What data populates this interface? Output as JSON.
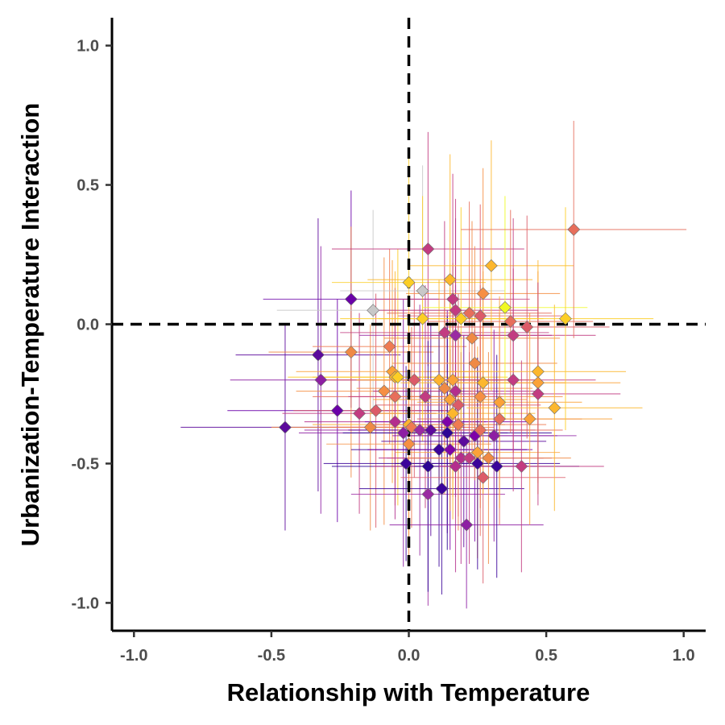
{
  "chart_data": {
    "type": "scatter",
    "title": "",
    "xlabel": "Relationship with Temperature",
    "ylabel": "Urbanization-Temperature Interaction",
    "xlim": [
      -1.08,
      1.08
    ],
    "ylim": [
      -1.1,
      1.1
    ],
    "x_ticks": [
      -1.0,
      -0.5,
      0.0,
      0.5,
      1.0
    ],
    "y_ticks": [
      -1.0,
      -0.5,
      0.0,
      0.5,
      1.0
    ],
    "x_tick_labels": [
      "-1.0",
      "-0.5",
      "0.0",
      "0.5",
      "1.0"
    ],
    "y_tick_labels": [
      "-1.0",
      "-0.5",
      "0.0",
      "0.5",
      "1.0"
    ],
    "reference_lines": {
      "x": 0.0,
      "y": 0.0,
      "style": "dashed"
    },
    "grid": false,
    "legend": "none",
    "marker": "diamond with horizontal and vertical error bars",
    "colormap": "plasma",
    "points": [
      {
        "x": -0.45,
        "y": -0.37,
        "xerr": 0.38,
        "yerr": 0.37,
        "color": "#5c0a9c"
      },
      {
        "x": -0.33,
        "y": -0.11,
        "xerr": 0.3,
        "yerr": 0.49,
        "color": "#5c0a9c"
      },
      {
        "x": -0.32,
        "y": -0.2,
        "xerr": 0.33,
        "yerr": 0.48,
        "color": "#8d1fa3"
      },
      {
        "x": -0.26,
        "y": -0.31,
        "xerr": 0.4,
        "yerr": 0.4,
        "color": "#6a00a8"
      },
      {
        "x": -0.21,
        "y": 0.09,
        "xerr": 0.32,
        "yerr": 0.39,
        "color": "#6a00a8"
      },
      {
        "x": -0.21,
        "y": -0.1,
        "xerr": 0.3,
        "yerr": 0.45,
        "color": "#ef8a45"
      },
      {
        "x": -0.18,
        "y": -0.32,
        "xerr": 0.28,
        "yerr": 0.36,
        "color": "#c23c81"
      },
      {
        "x": -0.13,
        "y": 0.05,
        "xerr": 0.35,
        "yerr": 0.36,
        "color": "#c8c8c8"
      },
      {
        "x": -0.14,
        "y": -0.37,
        "xerr": 0.36,
        "yerr": 0.37,
        "color": "#ef8a45"
      },
      {
        "x": -0.12,
        "y": -0.31,
        "xerr": 0.3,
        "yerr": 0.42,
        "color": "#dc5b68"
      },
      {
        "x": -0.09,
        "y": -0.24,
        "xerr": 0.32,
        "yerr": 0.48,
        "color": "#f68f44"
      },
      {
        "x": -0.07,
        "y": -0.08,
        "xerr": 0.28,
        "yerr": 0.35,
        "color": "#ef7b52"
      },
      {
        "x": -0.06,
        "y": -0.17,
        "xerr": 0.35,
        "yerr": 0.4,
        "color": "#fba238"
      },
      {
        "x": -0.05,
        "y": -0.19,
        "xerr": 0.3,
        "yerr": 0.38,
        "color": "#fcb72d"
      },
      {
        "x": -0.05,
        "y": -0.26,
        "xerr": 0.3,
        "yerr": 0.39,
        "color": "#e76e5b"
      },
      {
        "x": -0.05,
        "y": -0.35,
        "xerr": 0.33,
        "yerr": 0.35,
        "color": "#b42e8d"
      },
      {
        "x": -0.04,
        "y": -0.19,
        "xerr": 0.4,
        "yerr": 0.46,
        "color": "#fcce25"
      },
      {
        "x": -0.02,
        "y": -0.39,
        "xerr": 0.38,
        "yerr": 0.48,
        "color": "#8d1fa3"
      },
      {
        "x": -0.01,
        "y": -0.5,
        "xerr": 0.3,
        "yerr": 0.35,
        "color": "#3b049a"
      },
      {
        "x": 0.0,
        "y": 0.15,
        "xerr": 0.28,
        "yerr": 0.48,
        "color": "#fcce25"
      },
      {
        "x": 0.0,
        "y": -0.36,
        "xerr": 0.35,
        "yerr": 0.4,
        "color": "#fdb42f"
      },
      {
        "x": 0.0,
        "y": -0.43,
        "xerr": 0.3,
        "yerr": 0.4,
        "color": "#f68f44"
      },
      {
        "x": 0.01,
        "y": -0.37,
        "xerr": 0.3,
        "yerr": 0.36,
        "color": "#ef7b52"
      },
      {
        "x": 0.02,
        "y": -0.2,
        "xerr": 0.32,
        "yerr": 0.35,
        "color": "#dc5b68"
      },
      {
        "x": 0.04,
        "y": -0.38,
        "xerr": 0.42,
        "yerr": 0.45,
        "color": "#9a2aa2"
      },
      {
        "x": 0.05,
        "y": 0.12,
        "xerr": 0.3,
        "yerr": 0.45,
        "color": "#c8c8c8"
      },
      {
        "x": 0.05,
        "y": 0.02,
        "xerr": 0.3,
        "yerr": 0.44,
        "color": "#fcce25"
      },
      {
        "x": 0.06,
        "y": -0.26,
        "xerr": 0.28,
        "yerr": 0.4,
        "color": "#c23c81"
      },
      {
        "x": 0.07,
        "y": 0.27,
        "xerr": 0.35,
        "yerr": 0.42,
        "color": "#c23c81"
      },
      {
        "x": 0.07,
        "y": -0.61,
        "xerr": 0.28,
        "yerr": 0.4,
        "color": "#9a2aa2"
      },
      {
        "x": 0.07,
        "y": -0.51,
        "xerr": 0.35,
        "yerr": 0.45,
        "color": "#2c0594"
      },
      {
        "x": 0.08,
        "y": -0.38,
        "xerr": 0.3,
        "yerr": 0.38,
        "color": "#5c0a9c"
      },
      {
        "x": 0.11,
        "y": -0.2,
        "xerr": 0.3,
        "yerr": 0.36,
        "color": "#fdb42f"
      },
      {
        "x": 0.11,
        "y": -0.45,
        "xerr": 0.32,
        "yerr": 0.42,
        "color": "#3b049a"
      },
      {
        "x": 0.12,
        "y": -0.59,
        "xerr": 0.3,
        "yerr": 0.38,
        "color": "#3b049a"
      },
      {
        "x": 0.13,
        "y": -0.03,
        "xerr": 0.38,
        "yerr": 0.4,
        "color": "#c23c81"
      },
      {
        "x": 0.13,
        "y": -0.23,
        "xerr": 0.32,
        "yerr": 0.38,
        "color": "#ef8a45"
      },
      {
        "x": 0.14,
        "y": -0.35,
        "xerr": 0.3,
        "yerr": 0.4,
        "color": "#7e03a8"
      },
      {
        "x": 0.14,
        "y": -0.39,
        "xerr": 0.38,
        "yerr": 0.42,
        "color": "#2c0594"
      },
      {
        "x": 0.15,
        "y": -0.45,
        "xerr": 0.3,
        "yerr": 0.36,
        "color": "#7e03a8"
      },
      {
        "x": 0.15,
        "y": -0.27,
        "xerr": 0.28,
        "yerr": 0.4,
        "color": "#fba238"
      },
      {
        "x": 0.15,
        "y": 0.16,
        "xerr": 0.3,
        "yerr": 0.45,
        "color": "#fcb72d"
      },
      {
        "x": 0.16,
        "y": -0.2,
        "xerr": 0.3,
        "yerr": 0.42,
        "color": "#fba238"
      },
      {
        "x": 0.16,
        "y": -0.32,
        "xerr": 0.3,
        "yerr": 0.38,
        "color": "#fcb72d"
      },
      {
        "x": 0.16,
        "y": 0.09,
        "xerr": 0.28,
        "yerr": 0.45,
        "color": "#c23c81"
      },
      {
        "x": 0.17,
        "y": -0.04,
        "xerr": 0.35,
        "yerr": 0.42,
        "color": "#9a2aa2"
      },
      {
        "x": 0.17,
        "y": 0.05,
        "xerr": 0.3,
        "yerr": 0.4,
        "color": "#c23c81"
      },
      {
        "x": 0.17,
        "y": -0.24,
        "xerr": 0.3,
        "yerr": 0.38,
        "color": "#b42e8d"
      },
      {
        "x": 0.17,
        "y": -0.51,
        "xerr": 0.3,
        "yerr": 0.38,
        "color": "#b42e8d"
      },
      {
        "x": 0.18,
        "y": -0.29,
        "xerr": 0.3,
        "yerr": 0.4,
        "color": "#dc5b68"
      },
      {
        "x": 0.18,
        "y": -0.36,
        "xerr": 0.32,
        "yerr": 0.38,
        "color": "#ef7b52"
      },
      {
        "x": 0.19,
        "y": -0.48,
        "xerr": 0.3,
        "yerr": 0.38,
        "color": "#b42e8d"
      },
      {
        "x": 0.19,
        "y": 0.02,
        "xerr": 0.3,
        "yerr": 0.4,
        "color": "#fcce25"
      },
      {
        "x": 0.2,
        "y": -0.42,
        "xerr": 0.3,
        "yerr": 0.38,
        "color": "#5c0a9c"
      },
      {
        "x": 0.21,
        "y": -0.72,
        "xerr": 0.28,
        "yerr": 0.3,
        "color": "#8d1fa3"
      },
      {
        "x": 0.22,
        "y": -0.48,
        "xerr": 0.3,
        "yerr": 0.38,
        "color": "#c23c81"
      },
      {
        "x": 0.22,
        "y": 0.04,
        "xerr": 0.3,
        "yerr": 0.4,
        "color": "#e76e5b"
      },
      {
        "x": 0.23,
        "y": -0.05,
        "xerr": 0.32,
        "yerr": 0.42,
        "color": "#ef8a45"
      },
      {
        "x": 0.24,
        "y": -0.4,
        "xerr": 0.3,
        "yerr": 0.38,
        "color": "#7e03a8"
      },
      {
        "x": 0.24,
        "y": -0.14,
        "xerr": 0.3,
        "yerr": 0.42,
        "color": "#ef8a45"
      },
      {
        "x": 0.25,
        "y": -0.46,
        "xerr": 0.3,
        "yerr": 0.38,
        "color": "#fba238"
      },
      {
        "x": 0.25,
        "y": -0.5,
        "xerr": 0.3,
        "yerr": 0.38,
        "color": "#3b049a"
      },
      {
        "x": 0.26,
        "y": -0.26,
        "xerr": 0.3,
        "yerr": 0.4,
        "color": "#f68f44"
      },
      {
        "x": 0.26,
        "y": 0.03,
        "xerr": 0.3,
        "yerr": 0.4,
        "color": "#dc5b68"
      },
      {
        "x": 0.26,
        "y": -0.38,
        "xerr": 0.3,
        "yerr": 0.38,
        "color": "#e76e5b"
      },
      {
        "x": 0.27,
        "y": -0.55,
        "xerr": 0.3,
        "yerr": 0.38,
        "color": "#dc5b68"
      },
      {
        "x": 0.27,
        "y": -0.21,
        "xerr": 0.3,
        "yerr": 0.4,
        "color": "#fcb72d"
      },
      {
        "x": 0.27,
        "y": 0.11,
        "xerr": 0.28,
        "yerr": 0.45,
        "color": "#f68f44"
      },
      {
        "x": 0.29,
        "y": -0.48,
        "xerr": 0.3,
        "yerr": 0.38,
        "color": "#ef8a45"
      },
      {
        "x": 0.3,
        "y": 0.21,
        "xerr": 0.3,
        "yerr": 0.45,
        "color": "#fcb72d"
      },
      {
        "x": 0.31,
        "y": -0.4,
        "xerr": 0.3,
        "yerr": 0.38,
        "color": "#8d1fa3"
      },
      {
        "x": 0.32,
        "y": -0.51,
        "xerr": 0.3,
        "yerr": 0.4,
        "color": "#3b049a"
      },
      {
        "x": 0.33,
        "y": -0.34,
        "xerr": 0.3,
        "yerr": 0.38,
        "color": "#e76e5b"
      },
      {
        "x": 0.33,
        "y": -0.28,
        "xerr": 0.3,
        "yerr": 0.38,
        "color": "#fba238"
      },
      {
        "x": 0.35,
        "y": 0.06,
        "xerr": 0.3,
        "yerr": 0.4,
        "color": "#f0f921"
      },
      {
        "x": 0.37,
        "y": 0.01,
        "xerr": 0.3,
        "yerr": 0.4,
        "color": "#e76e5b"
      },
      {
        "x": 0.38,
        "y": -0.2,
        "xerr": 0.3,
        "yerr": 0.4,
        "color": "#c23c81"
      },
      {
        "x": 0.38,
        "y": -0.04,
        "xerr": 0.3,
        "yerr": 0.42,
        "color": "#c23c81"
      },
      {
        "x": 0.41,
        "y": -0.51,
        "xerr": 0.3,
        "yerr": 0.38,
        "color": "#c23c81"
      },
      {
        "x": 0.43,
        "y": -0.01,
        "xerr": 0.3,
        "yerr": 0.4,
        "color": "#dc5b68"
      },
      {
        "x": 0.44,
        "y": -0.34,
        "xerr": 0.3,
        "yerr": 0.38,
        "color": "#fba238"
      },
      {
        "x": 0.47,
        "y": -0.17,
        "xerr": 0.32,
        "yerr": 0.4,
        "color": "#fcb72d"
      },
      {
        "x": 0.47,
        "y": -0.21,
        "xerr": 0.3,
        "yerr": 0.4,
        "color": "#fba238"
      },
      {
        "x": 0.47,
        "y": -0.25,
        "xerr": 0.3,
        "yerr": 0.4,
        "color": "#c23c81"
      },
      {
        "x": 0.53,
        "y": -0.3,
        "xerr": 0.32,
        "yerr": 0.37,
        "color": "#fcb72d"
      },
      {
        "x": 0.57,
        "y": 0.02,
        "xerr": 0.32,
        "yerr": 0.4,
        "color": "#fcce25"
      },
      {
        "x": 0.6,
        "y": 0.34,
        "xerr": 0.41,
        "yerr": 0.39,
        "color": "#e76e5b"
      }
    ]
  }
}
